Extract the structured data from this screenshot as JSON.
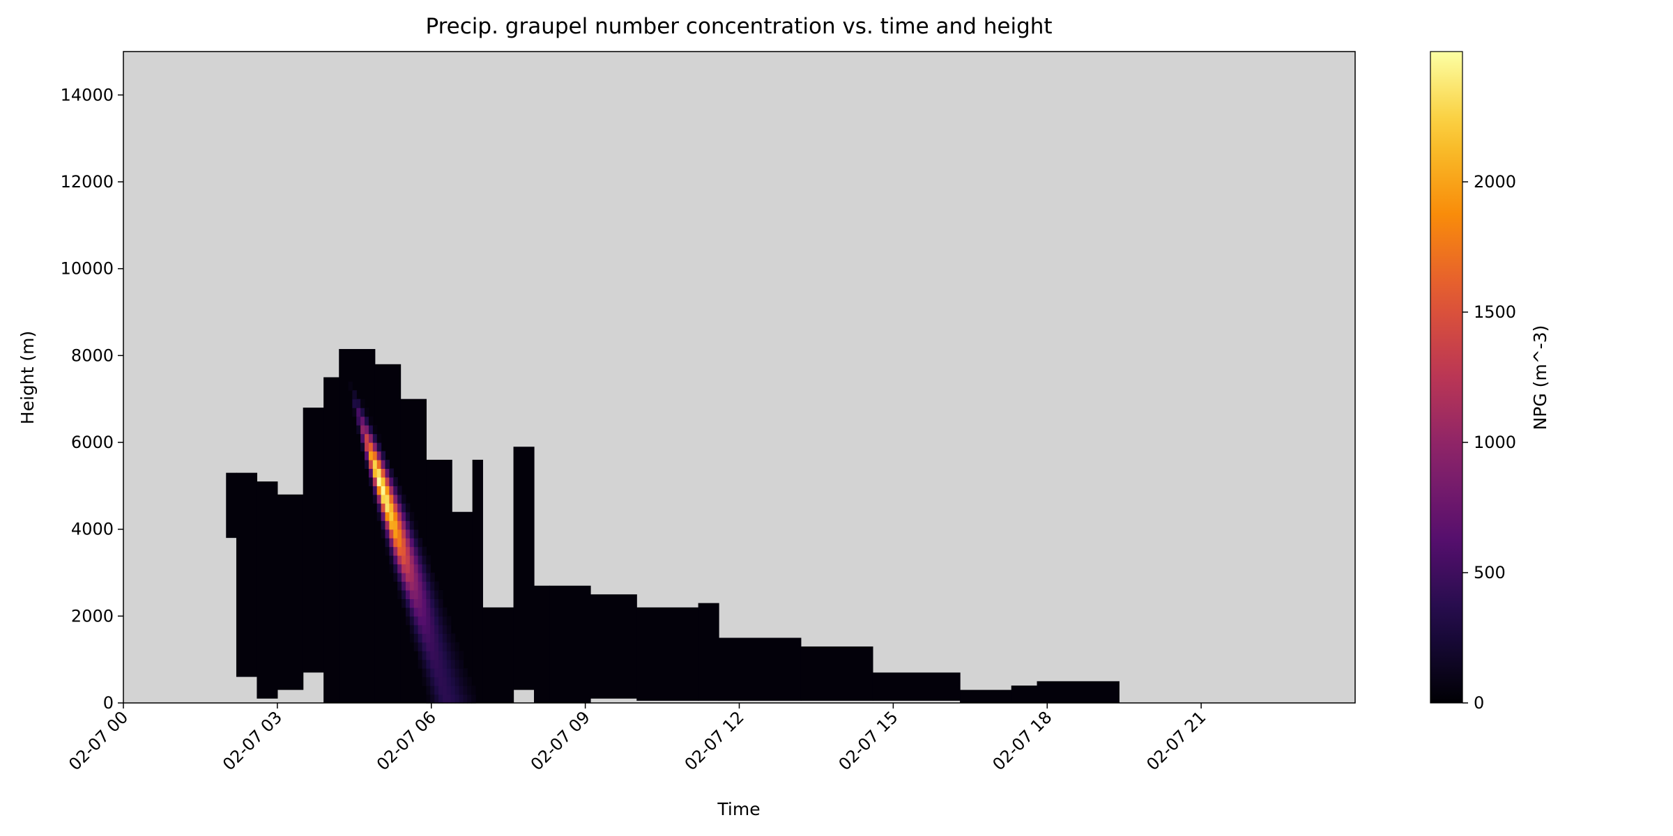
{
  "chart_data": {
    "type": "heatmap",
    "title": "Precip. graupel number concentration vs. time and height",
    "xlabel": "Time",
    "ylabel": "Height (m)",
    "x_range": [
      "02-07 00:00",
      "02-07 24:00"
    ],
    "ylim": [
      0,
      15000
    ],
    "x_ticks": [
      "02-07 00",
      "02-07 03",
      "02-07 06",
      "02-07 09",
      "02-07 12",
      "02-07 15",
      "02-07 18",
      "02-07 21"
    ],
    "x_tick_hours": [
      0,
      3,
      6,
      9,
      12,
      15,
      18,
      21
    ],
    "y_ticks": [
      0,
      2000,
      4000,
      6000,
      8000,
      10000,
      12000,
      14000
    ],
    "missing_color": "#d3d3d3",
    "colorbar": {
      "label": "NPG (m^-3)",
      "colormap": "inferno",
      "range": [
        0,
        2500
      ],
      "ticks": [
        0,
        500,
        1000,
        1500,
        2000
      ]
    },
    "series": [
      {
        "kind": "nonzero_region",
        "value": 30,
        "shapes": [
          {
            "hour": [
              2.0,
              2.2
            ],
            "height": [
              3800,
              5300
            ]
          },
          {
            "hour": [
              2.2,
              2.6
            ],
            "height": [
              600,
              5300
            ]
          },
          {
            "hour": [
              2.6,
              3.0
            ],
            "height": [
              100,
              5100
            ]
          },
          {
            "hour": [
              3.0,
              3.5
            ],
            "height": [
              300,
              4800
            ]
          },
          {
            "hour": [
              3.5,
              3.9
            ],
            "height": [
              700,
              6800
            ]
          },
          {
            "hour": [
              3.9,
              4.2
            ],
            "height": [
              0,
              7500
            ]
          },
          {
            "hour": [
              4.2,
              4.9
            ],
            "height": [
              0,
              8150
            ]
          },
          {
            "hour": [
              4.9,
              5.4
            ],
            "height": [
              0,
              7800
            ]
          },
          {
            "hour": [
              5.4,
              5.9
            ],
            "height": [
              0,
              7000
            ]
          },
          {
            "hour": [
              5.9,
              6.4
            ],
            "height": [
              0,
              5600
            ]
          },
          {
            "hour": [
              6.4,
              6.8
            ],
            "height": [
              0,
              4400
            ]
          },
          {
            "hour": [
              6.8,
              7.0
            ],
            "height": [
              0,
              5600
            ]
          },
          {
            "hour": [
              7.0,
              7.6
            ],
            "height": [
              0,
              2200
            ]
          },
          {
            "hour": [
              7.6,
              8.0
            ],
            "height": [
              300,
              5900
            ]
          },
          {
            "hour": [
              8.0,
              8.3
            ],
            "height": [
              0,
              2700
            ]
          },
          {
            "hour": [
              8.3,
              9.1
            ],
            "height": [
              0,
              2700
            ]
          },
          {
            "hour": [
              9.1,
              10.0
            ],
            "height": [
              100,
              2500
            ]
          },
          {
            "hour": [
              10.0,
              11.2
            ],
            "height": [
              50,
              2200
            ]
          },
          {
            "hour": [
              11.2,
              11.6
            ],
            "height": [
              50,
              2300
            ]
          },
          {
            "hour": [
              11.6,
              13.2
            ],
            "height": [
              50,
              1500
            ]
          },
          {
            "hour": [
              13.2,
              14.6
            ],
            "height": [
              50,
              1300
            ]
          },
          {
            "hour": [
              14.6,
              16.3
            ],
            "height": [
              50,
              700
            ]
          },
          {
            "hour": [
              16.3,
              17.3
            ],
            "height": [
              0,
              300
            ]
          },
          {
            "hour": [
              17.3,
              17.8
            ],
            "height": [
              0,
              400
            ]
          },
          {
            "hour": [
              17.8,
              19.4
            ],
            "height": [
              0,
              500
            ]
          }
        ]
      },
      {
        "kind": "core",
        "peak_value": 2500,
        "peak_hour": 4.75,
        "peak_height": 5100,
        "axis_top": {
          "hour": 4.5,
          "height": 7000
        },
        "axis_bottom": {
          "hour": 6.3,
          "height": 0
        },
        "value_at_peak_height": 2400,
        "value_near_top": 800,
        "value_near_ground": 400
      }
    ]
  }
}
